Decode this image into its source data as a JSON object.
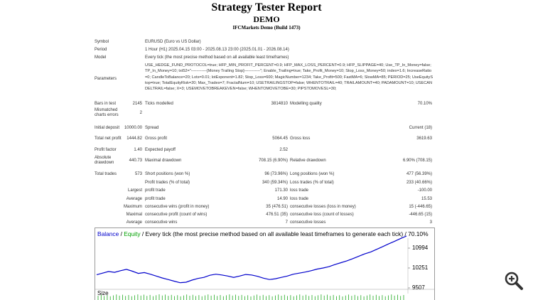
{
  "header": {
    "title": "Strategy Tester Report",
    "subtitle": "DEMO",
    "server": "IFCMarkets Demo (Build 1473)"
  },
  "info": [
    {
      "label": "Symbol",
      "value": "EURUSD (Euro vs US Dollar)"
    },
    {
      "label": "Period",
      "value": "1 Hour (H1) 2025.04.15 03:00 - 2025.08.13 23:00 (2025.01.01 - 2026.08.14)"
    },
    {
      "label": "Model",
      "value": "Every tick (the most precise method based on all available least timeframes)"
    },
    {
      "label": "Parameters",
      "value": "USE_HEDGE_FUND_PROTOCOL=true; HFP_MIN_PROFIT_PERCENT=0.9; HFP_MAX_LOSS_PERCENT=0.9; HFP_SLIPPAGE=40; Use_TP_In_Money=false; TP_In_Money=10; txt52=\"------------[Money Trailing Stop]------------\"; Enable_Trailing=true; Take_Profit_Money=10; Stop_Loss_Money=50; index=1.6; IncreaseRatio=0; CandleToBalance=20; Lots=0.01; lotExponent=1.82; Stop_Loss=600; MagicNumber=1234; Take_Profit=500; FastMA=6; SlowMA=85; PERIOD=25; UseEquityStop=true; TotalEquityRisk=20; Max_Trades=7; FractalNum=10; USETRAILINGSTOP=false; WHENTOTRAIL=40; TRAILAMOUNT=40; PADAMOUNT=10; USECANDELTRAIL=false; X=3; USEMOVETOBREAKEVEN=false; WHENTOMOVETOBE=30; PIPSTOMOVESL=30;"
    }
  ],
  "stats": [
    {
      "label": "Bars in test",
      "value": "2145",
      "label2": "Ticks modelled",
      "value2": "3814810",
      "label3": "Modelling quality",
      "value3": "70.10%"
    },
    {
      "label": "Mismatched charts errors",
      "value": "2"
    },
    {
      "label": "Initial deposit",
      "value": "10000.00",
      "label2": "Spread",
      "value3": "Current (18)"
    },
    {
      "label": "Total net profit",
      "value": "1444.82",
      "label2": "Gross profit",
      "value2": "5064.45",
      "label3": "Gross loss",
      "value3": "3619.63"
    },
    {
      "label": "Profit factor",
      "value": "1.40",
      "label2": "Expected payoff",
      "value2": "2.52"
    },
    {
      "label": "Absolute drawdown",
      "value": "440.73",
      "label2": "Maximal drawdown",
      "value2": "708.15 (6.90%)",
      "label3": "Relative drawdown",
      "value3": "6.90% (708.15)"
    },
    {
      "label": "Total trades",
      "value": "573",
      "label2": "Short positions (won %)",
      "value2": "96 (73.96%)",
      "label3": "Long positions (won %)",
      "value3": "477 (56.39%)"
    },
    {
      "label2": "Profit trades (% of total)",
      "value2": "340 (59.34%)",
      "label3": "Loss trades (% of total)",
      "value3": "233 (40.66%)"
    },
    {
      "label": "Largest",
      "label2": "profit trade",
      "value2": "171.30",
      "label3": "loss trade",
      "value3": "-100.00"
    },
    {
      "label": "Average",
      "label2": "profit trade",
      "value2": "14.90",
      "label3": "loss trade",
      "value3": "15.53"
    },
    {
      "label": "Maximum",
      "label2": "consecutive wins (profit in money)",
      "value2": "35 (476.51)",
      "label3": "consecutive losses (loss in money)",
      "value3": "15 (-446.65)"
    },
    {
      "label": "Maximal",
      "label2": "consecutive profit (count of wins)",
      "value2": "476.51 (35)",
      "label3": "consecutive loss (count of losses)",
      "value3": "-446.65 (15)"
    },
    {
      "label": "Average",
      "label2": "consecutive wins",
      "value2": "7",
      "label3": "consecutive losses",
      "value3": "3"
    }
  ],
  "balance_chart": {
    "balance_label": "Balance",
    "equity_label": "Equity",
    "separator": "/",
    "description": "Every tick (the most precise method based on all available least timeframes to generate each tick)",
    "quality": "70.10%",
    "size_label": "Size",
    "balance_color": "#0000cc",
    "equity_color": "#00a000",
    "size_color": "#22aa22",
    "ylim": [
      9348,
      11578
    ],
    "yticks": [
      9507,
      10251,
      10994
    ],
    "values": [
      10000,
      10060,
      10120,
      10090,
      10150,
      10200,
      10130,
      10050,
      10080,
      10020,
      9950,
      9880,
      9820,
      9760,
      9700,
      9720,
      9800,
      9860,
      9900,
      9980,
      10020,
      9990,
      9950,
      9900,
      9950,
      10010,
      9990,
      9940,
      9870,
      9820,
      9850,
      9900,
      9950,
      10020,
      10060,
      10100,
      10150,
      10210,
      10250,
      10300,
      10380,
      10450,
      10520,
      10600,
      10690,
      10780,
      10850,
      10950,
      11050,
      11150,
      11250,
      11350,
      11444.82
    ]
  }
}
